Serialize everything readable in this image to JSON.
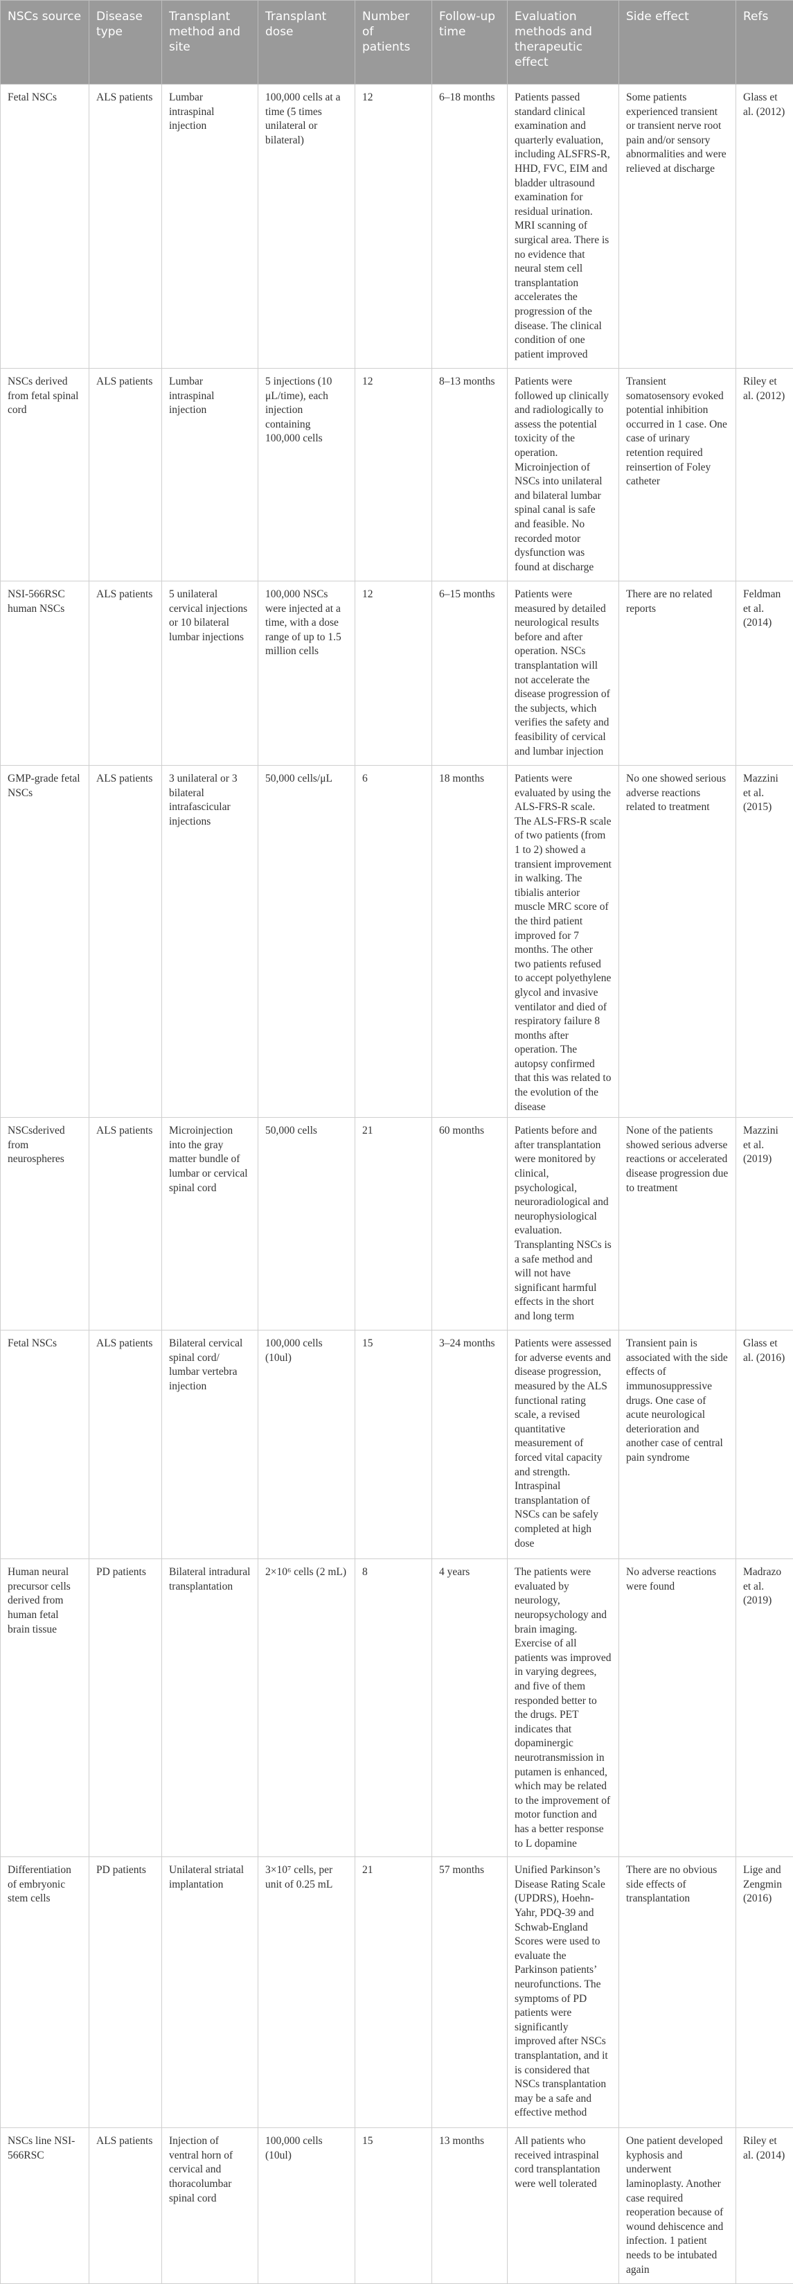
{
  "table": {
    "headers": [
      "NSCs source",
      "Disease type",
      "Transplant method and site",
      "Transplant dose",
      "Number of patients",
      "Follow-up time",
      "Evaluation methods and therapeutic effect",
      "Side effect",
      "Refs"
    ],
    "rows": [
      [
        "Fetal NSCs",
        "ALS patients",
        "Lumbar intraspinal injection",
        "100,000 cells at a time (5 times unilateral or bilateral)",
        "12",
        "6–18 months",
        "Patients passed standard clinical examination and quarterly evaluation, including ALSFRS-R, HHD, FVC, EIM and bladder ultrasound examination for residual urination. MRI scanning of surgical area. There is no evidence that neural stem cell transplantation accelerates the progression of the disease. The clinical condition of one patient improved",
        "Some patients experienced transient or transient nerve root pain and/or sensory abnormalities and were relieved at discharge",
        "Glass et al. (2012)"
      ],
      [
        "NSCs derived from fetal spinal cord",
        "ALS patients",
        "Lumbar intraspinal injection",
        "5 injections (10 μL/time), each injection containing 100,000 cells",
        "12",
        "8–13 months",
        "Patients were followed up clinically and radiologically to assess the potential toxicity of the operation. Microinjection of NSCs into unilateral and bilateral lumbar spinal canal is safe and feasible. No recorded motor dysfunction was found at discharge",
        "Transient somatosensory evoked potential inhibition occurred in 1 case. One case of urinary retention required reinsertion of Foley catheter",
        "Riley et al. (2012)"
      ],
      [
        "NSI-566RSC human NSCs",
        "ALS patients",
        "5 unilateral cervical injections or 10 bilateral lumbar injections",
        "100,000 NSCs were injected at a time, with a dose range of up to 1.5 million cells",
        "12",
        "6–15 months",
        "Patients were measured by detailed neurological results before and after operation. NSCs transplantation will not accelerate the disease progression of the subjects, which verifies the safety and feasibility of cervical and lumbar injection",
        "There are no related reports",
        "Feldman et al. (2014)"
      ],
      [
        "GMP-grade fetal NSCs",
        "ALS patients",
        "3 unilateral or 3 bilateral intrafascicular injections",
        "50,000 cells/μL",
        "6",
        "18 months",
        "Patients were evaluated by using the ALS-FRS-R scale. The ALS-FRS-R scale of two patients (from 1 to 2) showed a transient improvement in walking. The tibialis anterior muscle MRC score of the third patient improved for 7 months. The other two patients refused to accept polyethylene glycol and invasive ventilator and died of respiratory failure 8 months after operation. The autopsy confirmed that this was related to the evolution of the disease",
        "No one showed serious adverse reactions related to treatment",
        "Mazzini et al. (2015)"
      ],
      [
        "NSCsderived from neurospheres",
        "ALS patients",
        "Microinjection into the gray matter bundle of lumbar or cervical spinal cord",
        "50,000 cells",
        "21",
        "60 months",
        "Patients before and after transplantation were monitored by clinical, psychological, neuroradiological and neurophysiological evaluation. Transplanting NSCs is a safe method and will not have significant harmful effects in the short and long term",
        "None of the patients showed serious adverse reactions or accelerated disease progression due to treatment",
        "Mazzini et al. (2019)"
      ],
      [
        "Fetal NSCs",
        "ALS patients",
        "Bilateral cervical spinal cord/ lumbar vertebra injection",
        "100,000 cells (10ul)",
        "15",
        "3–24 months",
        "Patients were assessed for adverse events and disease progression, measured by the ALS functional rating scale, a revised quantitative measurement of forced vital capacity and strength. Intraspinal transplantation of NSCs can be safely completed at high dose",
        "Transient pain is associated with the side effects of immunosuppressive drugs. One case of acute neurological deterioration and another case of central pain syndrome",
        "Glass et al. (2016)"
      ],
      [
        "Human neural precursor cells derived from human fetal brain tissue",
        "PD patients",
        "Bilateral intradural transplantation",
        "2×10⁶ cells (2 mL)",
        "8",
        "4 years",
        "The patients were evaluated by neurology, neuropsychology and brain imaging. Exercise of all patients was improved in varying degrees, and five of them responded better to the drugs. PET indicates that dopaminergic neurotransmission in putamen is enhanced, which may be related to the improvement of motor function and has a better response to L dopamine",
        "No adverse reactions were found",
        "Madrazo et al. (2019)"
      ],
      [
        "Differentiation of embryonic stem cells",
        "PD patients",
        "Unilateral striatal implantation",
        "3×10⁷ cells, per unit of 0.25 mL",
        "21",
        "57 months",
        "Unified Parkinson’s Disease Rating Scale (UPDRS), Hoehn-Yahr, PDQ-39 and Schwab-England Scores were used to evaluate the Parkinson patients’ neurofunctions. The symptoms of PD patients were significantly improved after NSCs transplantation, and it is considered that NSCs transplantation may be a safe and effective method",
        "There are no obvious side effects of transplantation",
        "Lige and Zengmin (2016)"
      ],
      [
        "NSCs line NSI-566RSC",
        "ALS patients",
        "Injection of ventral horn of cervical and thoracolumbar spinal cord",
        "100,000 cells (10ul)",
        "15",
        "13 months",
        "All patients who received intraspinal cord transplantation were well tolerated",
        "One patient developed kyphosis and underwent laminoplasty. Another case required reoperation because of wound dehiscence and infection. 1 patient needs to be intubated again",
        "Riley et al. (2014)"
      ]
    ]
  }
}
